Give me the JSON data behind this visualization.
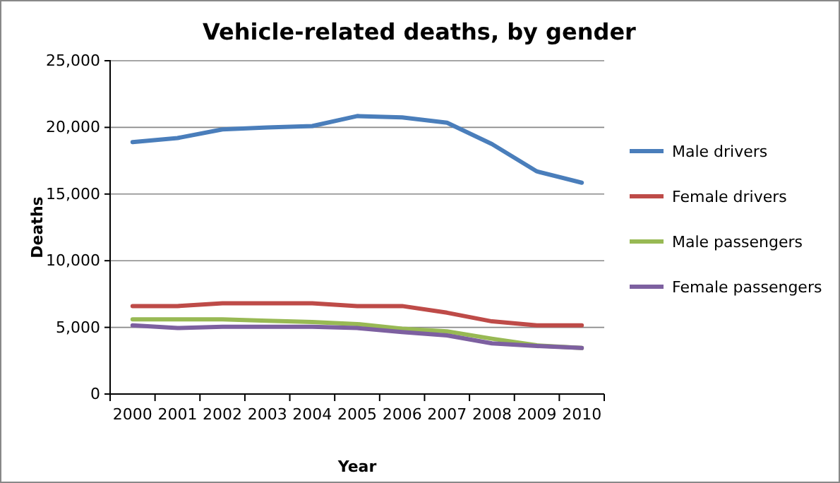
{
  "chart_data": {
    "type": "line",
    "title": "Vehicle-related deaths, by gender",
    "xlabel": "Year",
    "ylabel": "Deaths",
    "categories": [
      "2000",
      "2001",
      "2002",
      "2003",
      "2004",
      "2005",
      "2006",
      "2007",
      "2008",
      "2009",
      "2010"
    ],
    "series": [
      {
        "name": "Male drivers",
        "color": "#4a7ebb",
        "values": [
          18900,
          19200,
          19850,
          20000,
          20100,
          20850,
          20750,
          20350,
          18750,
          16700,
          15850
        ]
      },
      {
        "name": "Female drivers",
        "color": "#be4b48",
        "values": [
          6600,
          6600,
          6800,
          6800,
          6800,
          6600,
          6600,
          6100,
          5450,
          5150,
          5150
        ]
      },
      {
        "name": "Male passengers",
        "color": "#98b954",
        "values": [
          5600,
          5600,
          5600,
          5500,
          5400,
          5250,
          4900,
          4700,
          4150,
          3650,
          3450
        ]
      },
      {
        "name": "Female passengers",
        "color": "#7d60a0",
        "values": [
          5150,
          4950,
          5050,
          5050,
          5050,
          4950,
          4650,
          4400,
          3800,
          3600,
          3450
        ]
      }
    ],
    "ylim": [
      0,
      25000
    ],
    "yticks": [
      {
        "value": 0,
        "label": "0"
      },
      {
        "value": 5000,
        "label": "5,000"
      },
      {
        "value": 10000,
        "label": "10,000"
      },
      {
        "value": 15000,
        "label": "15,000"
      },
      {
        "value": 20000,
        "label": "20,000"
      },
      {
        "value": 25000,
        "label": "25,000"
      }
    ],
    "grid": "y",
    "legend": "right",
    "marker": "none",
    "line_style": "solid"
  }
}
